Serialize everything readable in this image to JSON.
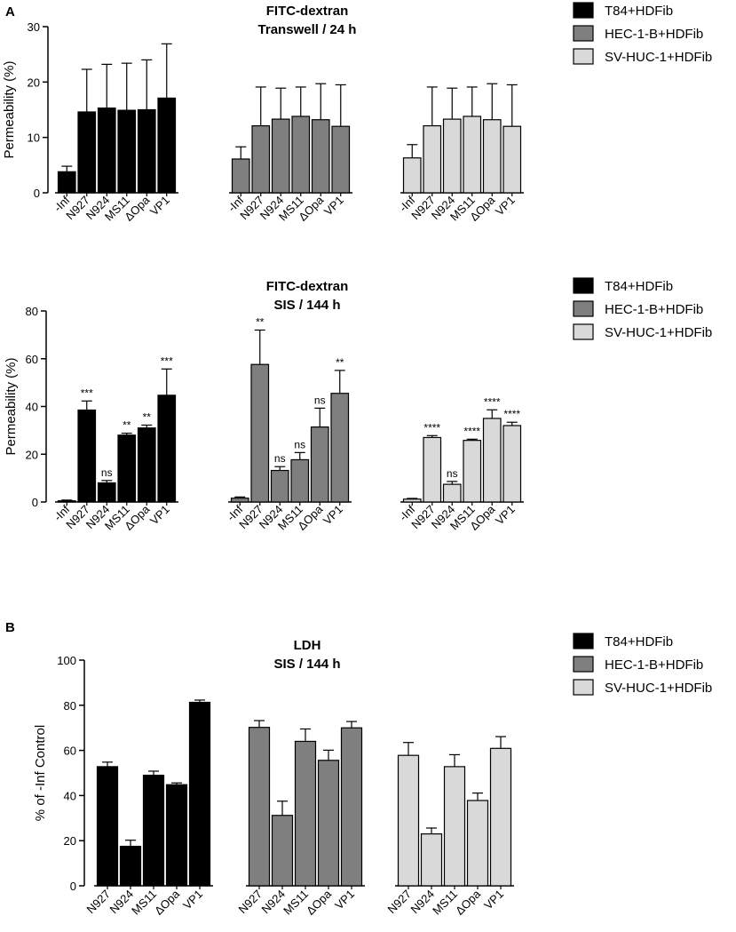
{
  "panels": {
    "a": "A",
    "b": "B"
  },
  "chart_data": [
    {
      "type": "bar",
      "title": "FITC-dextran",
      "subtitle": "Transwell / 24 h",
      "ylabel": "Permeability (%)",
      "xlabel": "",
      "ylim": [
        0,
        30
      ],
      "yticks": [
        0,
        10,
        20,
        30
      ],
      "categories": [
        "-Inf",
        "N927",
        "N924",
        "MS11",
        "ΔOpa",
        "VP1"
      ],
      "series": [
        {
          "name": "T84+HDFib",
          "color": "#000000",
          "values": [
            3.8,
            14.6,
            15.3,
            14.9,
            15.0,
            17.1
          ],
          "errors": [
            1.0,
            7.7,
            7.9,
            8.5,
            9.0,
            9.8
          ],
          "labels": [
            "",
            "",
            "",
            "",
            "",
            ""
          ]
        },
        {
          "name": "HEC-1-B+HDFib",
          "color": "#7f7f7f",
          "values": [
            6.1,
            12.1,
            13.3,
            13.8,
            13.2,
            12.0
          ],
          "errors": [
            2.2,
            7.0,
            5.6,
            5.3,
            6.5,
            7.5
          ],
          "labels": [
            "",
            "",
            "",
            "",
            "",
            ""
          ]
        },
        {
          "name": "SV-HUC-1+HDFib",
          "color": "#d9d9d9",
          "values": [
            6.3,
            12.1,
            13.3,
            13.8,
            13.2,
            12.0
          ],
          "errors": [
            2.4,
            7.0,
            5.6,
            5.3,
            6.5,
            7.5
          ],
          "labels": [
            "",
            "",
            "",
            "",
            "",
            ""
          ]
        }
      ]
    },
    {
      "type": "bar",
      "title": "FITC-dextran",
      "subtitle": "SIS / 144 h",
      "ylabel": "Permeability (%)",
      "xlabel": "",
      "ylim": [
        0,
        80
      ],
      "yticks": [
        0,
        20,
        40,
        60,
        80
      ],
      "categories": [
        "-Inf",
        "N927",
        "N924",
        "MS11",
        "ΔOpa",
        "VP1"
      ],
      "series": [
        {
          "name": "T84+HDFib",
          "color": "#000000",
          "values": [
            0.5,
            38.5,
            8.0,
            28.0,
            31.0,
            44.7
          ],
          "errors": [
            0.3,
            3.8,
            1.0,
            0.8,
            1.2,
            11.0
          ],
          "labels": [
            "",
            "***",
            "ns",
            "**",
            "**",
            "***"
          ]
        },
        {
          "name": "HEC-1-B+HDFib",
          "color": "#7f7f7f",
          "values": [
            1.6,
            57.6,
            13.2,
            17.7,
            31.4,
            45.5
          ],
          "errors": [
            0.5,
            14.4,
            1.6,
            3.0,
            7.9,
            9.6
          ],
          "labels": [
            "",
            "**",
            "ns",
            "ns",
            "ns",
            "**"
          ]
        },
        {
          "name": "SV-HUC-1+HDFib",
          "color": "#d9d9d9",
          "values": [
            1.2,
            27.0,
            7.4,
            25.8,
            35.0,
            32.0
          ],
          "errors": [
            0.3,
            0.8,
            1.2,
            0.5,
            3.6,
            1.4
          ],
          "labels": [
            "",
            "****",
            "ns",
            "****",
            "****",
            "****"
          ]
        }
      ]
    },
    {
      "type": "bar",
      "title": "LDH",
      "subtitle": "SIS / 144 h",
      "ylabel": "% of -Inf Control",
      "xlabel": "",
      "ylim": [
        0,
        100
      ],
      "yticks": [
        0,
        20,
        40,
        60,
        80,
        100
      ],
      "categories": [
        "N927",
        "N924",
        "MS11",
        "ΔOpa",
        "VP1"
      ],
      "series": [
        {
          "name": "T84+HDFib",
          "color": "#000000",
          "values": [
            52.8,
            17.5,
            49.0,
            44.8,
            81.3
          ],
          "errors": [
            2.0,
            2.7,
            1.8,
            0.8,
            1.0
          ],
          "labels": [
            "",
            "",
            "",
            "",
            ""
          ]
        },
        {
          "name": "HEC-1-B+HDFib",
          "color": "#7f7f7f",
          "values": [
            70.2,
            31.2,
            64.0,
            55.6,
            70.0
          ],
          "errors": [
            3.0,
            6.3,
            5.5,
            4.5,
            2.8
          ],
          "labels": [
            "",
            "",
            "",
            "",
            ""
          ]
        },
        {
          "name": "SV-HUC-1+HDFib",
          "color": "#d9d9d9",
          "values": [
            57.8,
            23.0,
            52.8,
            37.8,
            60.9
          ],
          "errors": [
            5.7,
            2.6,
            5.3,
            3.3,
            5.2
          ],
          "labels": [
            "",
            "",
            "",
            "",
            ""
          ]
        }
      ]
    }
  ]
}
